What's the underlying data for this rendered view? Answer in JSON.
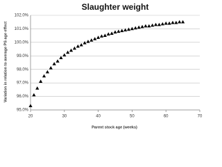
{
  "chart_data": {
    "type": "scatter",
    "title": "Slaughter weight",
    "x_label": "Parent stock age (weeks)",
    "y_label": "Variation  in relation to average PS age effect",
    "x": [
      20,
      21,
      22,
      23,
      24,
      25,
      26,
      27,
      28,
      29,
      30,
      31,
      32,
      33,
      34,
      35,
      36,
      37,
      38,
      39,
      40,
      41,
      42,
      43,
      44,
      45,
      46,
      47,
      48,
      49,
      50,
      51,
      52,
      53,
      54,
      55,
      56,
      57,
      58,
      59,
      60,
      61,
      62,
      63,
      64,
      65
    ],
    "series": [
      {
        "color": "#000000",
        "values": [
          95.3,
          96.1,
          96.6,
          97.1,
          97.5,
          97.8,
          98.1,
          98.4,
          98.6,
          98.85,
          99.05,
          99.25,
          99.4,
          99.55,
          99.7,
          99.8,
          99.95,
          100.05,
          100.15,
          100.25,
          100.35,
          100.45,
          100.5,
          100.6,
          100.65,
          100.75,
          100.8,
          100.85,
          100.9,
          100.95,
          101.0,
          101.05,
          101.1,
          101.15,
          101.2,
          101.2,
          101.25,
          101.3,
          101.3,
          101.35,
          101.4,
          101.4,
          101.45,
          101.45,
          101.5,
          101.5
        ]
      }
    ],
    "xlim": [
      20,
      70
    ],
    "xticks": [
      20,
      30,
      40,
      50,
      60,
      70
    ],
    "ylim": [
      95,
      102
    ],
    "yticks": [
      {
        "value": 95,
        "label": "95.0%"
      },
      {
        "value": 96,
        "label": "96.0%"
      },
      {
        "value": 97,
        "label": "97.0%"
      },
      {
        "value": 98,
        "label": "98.0%"
      },
      {
        "value": 99,
        "label": "99.0%"
      },
      {
        "value": 100,
        "label": "100.0%"
      },
      {
        "value": 101,
        "label": "101.0%"
      },
      {
        "value": 102,
        "label": "102.0%"
      }
    ],
    "grid": true
  }
}
